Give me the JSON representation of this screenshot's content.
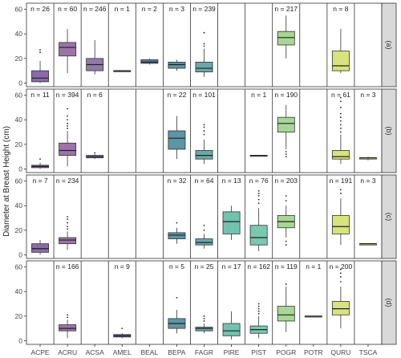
{
  "chart_data": {
    "type": "boxplot",
    "ylabel": "Diameter at Breast Height (cm)",
    "xlabel": "",
    "title": "",
    "ylim": [
      -3,
      65
    ],
    "yticks": [
      0,
      20,
      40,
      60
    ],
    "species": [
      "ACPE",
      "ACRU",
      "ACSA",
      "AMEL",
      "BEAL",
      "BEPA",
      "FAGR",
      "PIRE",
      "PIST",
      "POGR",
      "POTR",
      "QURU",
      "TSCA"
    ],
    "colors": {
      "ACPE": "#8a6aa8",
      "ACRU": "#9a74a8",
      "ACSA": "#8d7da8",
      "AMEL": "#66668a",
      "BEAL": "#5f7d9a",
      "BEPA": "#5d96a4",
      "FAGR": "#6aa8a8",
      "PIRE": "#72c2ae",
      "PIST": "#7ac8ad",
      "POGR": "#a7d696",
      "POTR": "#b7db84",
      "QURU": "#d7e37c",
      "TSCA": "#e2e67a"
    },
    "panels": [
      {
        "strip": "(a)",
        "groups": [
          {
            "sp": "ACPE",
            "n": "n = 26",
            "q1": 1,
            "med": 4,
            "q3": 10,
            "lo": 0,
            "hi": 18,
            "out": [
              25,
              27
            ]
          },
          {
            "sp": "ACRU",
            "n": "n = 60",
            "q1": 22,
            "med": 29,
            "q3": 33,
            "lo": 8,
            "hi": 44,
            "out": []
          },
          {
            "sp": "ACSA",
            "n": "n = 246",
            "q1": 10,
            "med": 15,
            "q3": 20,
            "lo": 7,
            "hi": 35,
            "out": []
          },
          {
            "sp": "AMEL",
            "n": "n = 1",
            "q1": 10,
            "med": 10,
            "q3": 10,
            "lo": 10,
            "hi": 10,
            "out": []
          },
          {
            "sp": "BEAL",
            "n": "n = 2",
            "q1": 16,
            "med": 17,
            "q3": 19,
            "lo": 15,
            "hi": 20,
            "out": []
          },
          {
            "sp": "BEPA",
            "n": "n = 3",
            "q1": 12,
            "med": 15,
            "q3": 17,
            "lo": 10,
            "hi": 19,
            "out": []
          },
          {
            "sp": "FAGR",
            "n": "n = 239",
            "q1": 9,
            "med": 12,
            "q3": 17,
            "lo": 5,
            "hi": 28,
            "out": [
              30,
              32,
              41
            ]
          },
          {
            "sp": "PIRE",
            "n": "",
            "q1": null
          },
          {
            "sp": "PIST",
            "n": "",
            "q1": null
          },
          {
            "sp": "POGR",
            "n": "n = 217",
            "q1": 31,
            "med": 37,
            "q3": 42,
            "lo": 20,
            "hi": 55,
            "out": []
          },
          {
            "sp": "POTR",
            "n": "",
            "q1": null
          },
          {
            "sp": "QURU",
            "n": "n = 8",
            "q1": 10,
            "med": 14,
            "q3": 26,
            "lo": 8,
            "hi": 44,
            "out": []
          },
          {
            "sp": "TSCA",
            "n": "",
            "q1": null
          }
        ]
      },
      {
        "strip": "(b)",
        "groups": [
          {
            "sp": "ACPE",
            "n": "n = 11",
            "q1": 1,
            "med": 2,
            "q3": 3,
            "lo": 0,
            "hi": 5,
            "out": [
              8
            ]
          },
          {
            "sp": "ACRU",
            "n": "n = 394",
            "q1": 11,
            "med": 15,
            "q3": 21,
            "lo": 2,
            "hi": 31,
            "out": [
              33,
              35,
              37,
              40,
              43,
              49
            ]
          },
          {
            "sp": "ACSA",
            "n": "n = 6",
            "q1": 9,
            "med": 10,
            "q3": 11,
            "lo": 8,
            "hi": 12,
            "out": [
              13
            ]
          },
          {
            "sp": "AMEL",
            "n": "",
            "q1": null
          },
          {
            "sp": "BEAL",
            "n": "",
            "q1": null
          },
          {
            "sp": "BEPA",
            "n": "n = 22",
            "q1": 16,
            "med": 25,
            "q3": 31,
            "lo": 8,
            "hi": 43,
            "out": []
          },
          {
            "sp": "FAGR",
            "n": "n = 101",
            "q1": 8,
            "med": 11,
            "q3": 15,
            "lo": 4,
            "hi": 24,
            "out": [
              28,
              31,
              34,
              36
            ]
          },
          {
            "sp": "PIRE",
            "n": "",
            "q1": null
          },
          {
            "sp": "PIST",
            "n": "n = 1",
            "q1": 11,
            "med": 11,
            "q3": 11,
            "lo": 11,
            "hi": 11,
            "out": []
          },
          {
            "sp": "POGR",
            "n": "n = 190",
            "q1": 30,
            "med": 37,
            "q3": 42,
            "lo": 16,
            "hi": 52,
            "out": [
              10,
              12,
              14
            ]
          },
          {
            "sp": "POTR",
            "n": "",
            "q1": null
          },
          {
            "sp": "QURU",
            "n": "n = 61",
            "q1": 8,
            "med": 10,
            "q3": 15,
            "lo": 4,
            "hi": 28,
            "out": [
              30,
              33,
              36,
              39,
              42,
              45,
              50,
              55,
              58
            ]
          },
          {
            "sp": "TSCA",
            "n": "n = 3",
            "q1": 8,
            "med": 9,
            "q3": 9,
            "lo": 7,
            "hi": 10,
            "out": []
          }
        ]
      },
      {
        "strip": "(c)",
        "groups": [
          {
            "sp": "ACPE",
            "n": "n = 7",
            "q1": 2,
            "med": 5,
            "q3": 9,
            "lo": 0,
            "hi": 12,
            "out": []
          },
          {
            "sp": "ACRU",
            "n": "n = 234",
            "q1": 9,
            "med": 12,
            "q3": 14,
            "lo": 4,
            "hi": 19,
            "out": [
              21,
              23,
              26,
              29,
              31
            ]
          },
          {
            "sp": "ACSA",
            "n": "",
            "q1": null
          },
          {
            "sp": "AMEL",
            "n": "",
            "q1": null
          },
          {
            "sp": "BEAL",
            "n": "",
            "q1": null
          },
          {
            "sp": "BEPA",
            "n": "n = 32",
            "q1": 13,
            "med": 16,
            "q3": 18,
            "lo": 9,
            "hi": 22,
            "out": [
              26
            ]
          },
          {
            "sp": "FAGR",
            "n": "n = 64",
            "q1": 8,
            "med": 10,
            "q3": 13,
            "lo": 5,
            "hi": 17,
            "out": [
              20,
              24
            ]
          },
          {
            "sp": "PIRE",
            "n": "n = 13",
            "q1": 17,
            "med": 27,
            "q3": 35,
            "lo": 12,
            "hi": 40,
            "out": []
          },
          {
            "sp": "PIST",
            "n": "n = 76",
            "q1": 8,
            "med": 14,
            "q3": 24,
            "lo": 3,
            "hi": 38,
            "out": [
              42,
              45,
              48,
              50,
              52
            ]
          },
          {
            "sp": "POGR",
            "n": "n = 203",
            "q1": 22,
            "med": 27,
            "q3": 32,
            "lo": 14,
            "hi": 40,
            "out": [
              8,
              11,
              44,
              48
            ]
          },
          {
            "sp": "POTR",
            "n": "",
            "q1": null
          },
          {
            "sp": "QURU",
            "n": "n = 191",
            "q1": 17,
            "med": 23,
            "q3": 32,
            "lo": 8,
            "hi": 46,
            "out": [
              50,
              53
            ]
          },
          {
            "sp": "TSCA",
            "n": "n = 3",
            "q1": 8,
            "med": 9,
            "q3": 9,
            "lo": 8,
            "hi": 9,
            "out": []
          }
        ]
      },
      {
        "strip": "(d)",
        "groups": [
          {
            "sp": "ACPE",
            "n": "",
            "q1": null
          },
          {
            "sp": "ACRU",
            "n": "n = 166",
            "q1": 8,
            "med": 10,
            "q3": 13,
            "lo": 2,
            "hi": 17,
            "out": [
              19,
              21
            ]
          },
          {
            "sp": "ACSA",
            "n": "",
            "q1": null
          },
          {
            "sp": "AMEL",
            "n": "n = 9",
            "q1": 3,
            "med": 4,
            "q3": 5,
            "lo": 2,
            "hi": 6,
            "out": [
              10
            ]
          },
          {
            "sp": "BEAL",
            "n": "",
            "q1": null
          },
          {
            "sp": "BEPA",
            "n": "n = 5",
            "q1": 10,
            "med": 14,
            "q3": 18,
            "lo": 6,
            "hi": 25,
            "out": [
              35
            ]
          },
          {
            "sp": "FAGR",
            "n": "n = 25",
            "q1": 8,
            "med": 10,
            "q3": 11,
            "lo": 6,
            "hi": 14,
            "out": [
              16,
              18,
              20
            ]
          },
          {
            "sp": "PIRE",
            "n": "n = 17",
            "q1": 4,
            "med": 8,
            "q3": 14,
            "lo": 1,
            "hi": 24,
            "out": []
          },
          {
            "sp": "PIST",
            "n": "n = 162",
            "q1": 6,
            "med": 9,
            "q3": 12,
            "lo": 2,
            "hi": 20,
            "out": [
              22,
              24,
              26,
              28,
              30
            ]
          },
          {
            "sp": "POGR",
            "n": "n = 119",
            "q1": 16,
            "med": 21,
            "q3": 28,
            "lo": 7,
            "hi": 44,
            "out": [
              46
            ]
          },
          {
            "sp": "POTR",
            "n": "n = 1",
            "q1": 20,
            "med": 20,
            "q3": 20,
            "lo": 20,
            "hi": 20,
            "out": []
          },
          {
            "sp": "QURU",
            "n": "n = 200",
            "q1": 21,
            "med": 26,
            "q3": 32,
            "lo": 10,
            "hi": 44,
            "out": [
              48,
              52,
              55,
              58
            ]
          },
          {
            "sp": "TSCA",
            "n": "",
            "q1": null
          }
        ]
      }
    ]
  }
}
